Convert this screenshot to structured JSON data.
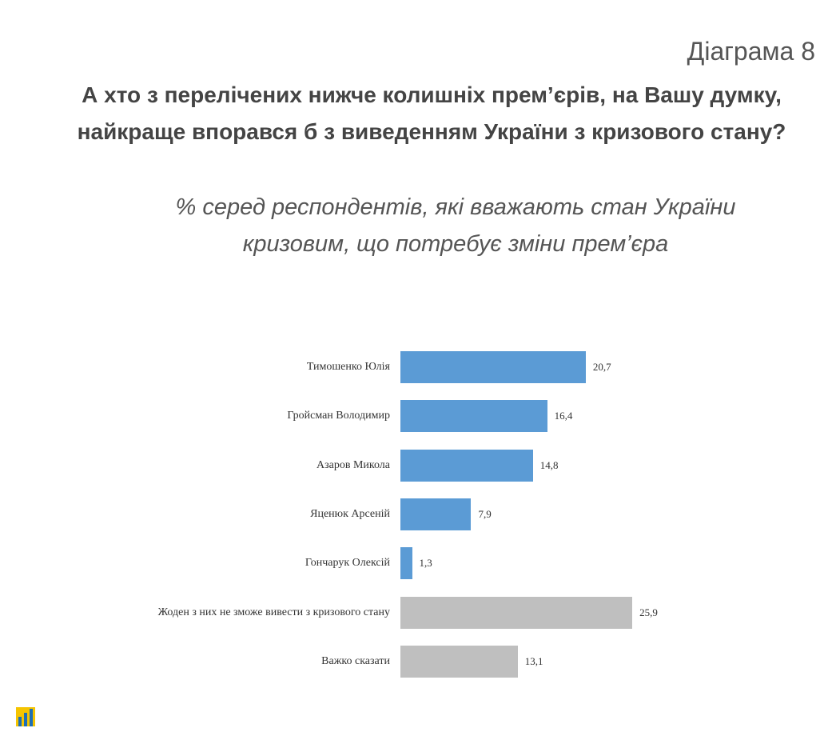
{
  "chart_data": {
    "type": "bar",
    "orientation": "horizontal",
    "label": "Діаграма 8",
    "title": "А хто з перелічених нижче колишніх прем’єрів, на Вашу думку, найкраще впорався б з виведенням України з кризового стану?",
    "subtitle": "% серед респондентів, які вважають стан України кризовим, що потребує зміни прем’єра",
    "categories": [
      "Тимошенко Юлія",
      "Гройсман Володимир",
      "Азаров Микола",
      "Яценюк Арсеній",
      "Гончарук Олексій",
      "Жоден з них не зможе вивести з кризового стану",
      "Важко сказати"
    ],
    "values": [
      20.7,
      16.4,
      14.8,
      7.9,
      1.3,
      25.9,
      13.1
    ],
    "value_labels": [
      "20,7",
      "16,4",
      "14,8",
      "7,9",
      "1,3",
      "25,9",
      "13,1"
    ],
    "colors": [
      "#5b9bd5",
      "#5b9bd5",
      "#5b9bd5",
      "#5b9bd5",
      "#5b9bd5",
      "#bfbfbf",
      "#bfbfbf"
    ]
  }
}
